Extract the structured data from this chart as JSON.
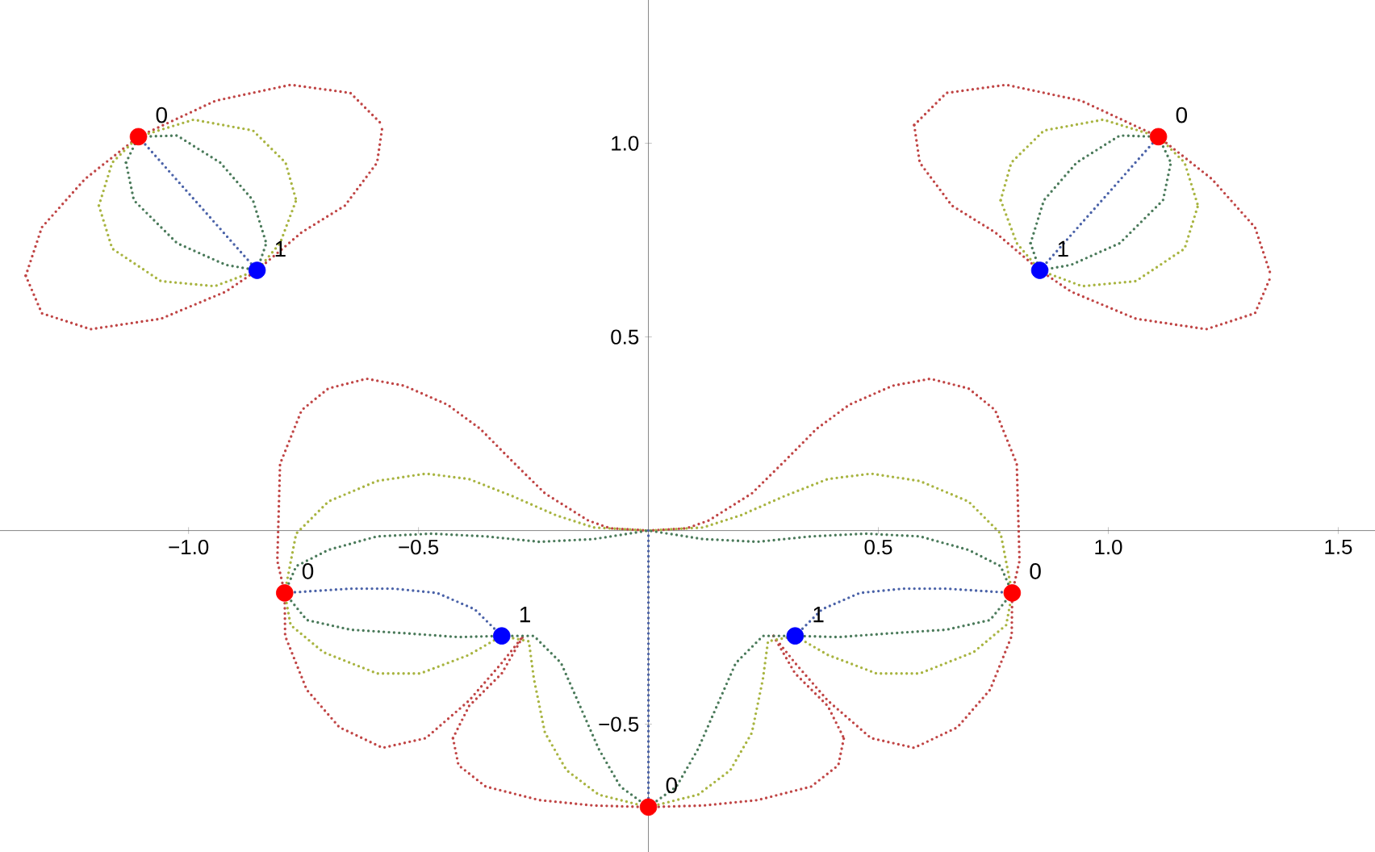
{
  "chart_data": {
    "type": "line",
    "line_style": "dotted",
    "xlim": [
      -1.41,
      1.58
    ],
    "ylim": [
      -0.83,
      1.37
    ],
    "xticks": [
      {
        "value": -1,
        "label": "−1.0"
      },
      {
        "value": -0.5,
        "label": "−0.5"
      },
      {
        "value": 0.5,
        "label": "0.5"
      },
      {
        "value": 1,
        "label": "1.0"
      },
      {
        "value": 1.5,
        "label": "1.5"
      }
    ],
    "yticks": [
      {
        "value": -0.5,
        "label": "−0.5"
      },
      {
        "value": 0.5,
        "label": "0.5"
      },
      {
        "value": 1,
        "label": "1.0"
      }
    ],
    "series": [
      {
        "color": "#c04545",
        "x": [
          -1.354,
          -1.319,
          -1.225,
          -1.109,
          -0.941,
          -0.778,
          -0.648,
          -0.578
        ],
        "values": [
          0.658,
          0.783,
          0.908,
          1.017,
          1.11,
          1.151,
          1.13,
          1.047
        ]
      },
      {
        "color": "#c04545",
        "x": [
          -1.354,
          -1.319,
          -1.213,
          -1.06,
          -0.919,
          -0.851,
          -0.754,
          -0.66,
          -0.59,
          -0.578
        ],
        "values": [
          0.658,
          0.561,
          0.52,
          0.547,
          0.617,
          0.672,
          0.77,
          0.839,
          0.95,
          1.047
        ]
      },
      {
        "color": "#c04545",
        "x": [
          0.578,
          0.648,
          0.778,
          0.941,
          1.109,
          1.225,
          1.319,
          1.354
        ],
        "values": [
          1.047,
          1.13,
          1.151,
          1.11,
          1.017,
          0.908,
          0.783,
          0.658
        ]
      },
      {
        "color": "#c04545",
        "x": [
          0.578,
          0.59,
          0.66,
          0.754,
          0.851,
          0.919,
          1.06,
          1.213,
          1.319,
          1.354
        ],
        "values": [
          1.047,
          0.95,
          0.839,
          0.77,
          0.672,
          0.617,
          0.547,
          0.52,
          0.561,
          0.658
        ]
      },
      {
        "color": "#c04545",
        "x": [
          -0.791,
          -0.807,
          -0.801,
          -0.754,
          -0.696,
          -0.613,
          -0.531,
          -0.437,
          -0.366,
          -0.296,
          -0.225,
          -0.131,
          -0.084,
          0,
          0.084,
          0.131,
          0.225,
          0.296,
          0.366,
          0.437,
          0.531,
          0.613,
          0.696,
          0.754,
          0.801,
          0.807,
          0.791
        ],
        "values": [
          -0.161,
          -0.078,
          0.172,
          0.311,
          0.367,
          0.392,
          0.374,
          0.325,
          0.263,
          0.179,
          0.096,
          0.026,
          0.006,
          0,
          0.006,
          0.026,
          0.096,
          0.179,
          0.263,
          0.325,
          0.374,
          0.392,
          0.367,
          0.311,
          0.172,
          -0.078,
          -0.161
        ]
      },
      {
        "color": "#c04545",
        "x": [
          -0.791,
          -0.79,
          -0.743,
          -0.672,
          -0.578,
          -0.484,
          -0.39,
          -0.319,
          -0.272
        ],
        "values": [
          -0.161,
          -0.272,
          -0.411,
          -0.508,
          -0.561,
          -0.536,
          -0.439,
          -0.342,
          -0.272
        ]
      },
      {
        "color": "#c04545",
        "x": [
          -0.425,
          -0.39,
          -0.319,
          -0.272
        ],
        "values": [
          -0.536,
          -0.453,
          -0.369,
          -0.272
        ]
      },
      {
        "color": "#c04545",
        "x": [
          -0.425,
          -0.413,
          -0.354,
          -0.237,
          -0.119,
          0
        ],
        "values": [
          -0.536,
          -0.606,
          -0.661,
          -0.696,
          -0.71,
          -0.714
        ]
      },
      {
        "color": "#c04545",
        "x": [
          0.272,
          0.319,
          0.39,
          0.484,
          0.578,
          0.672,
          0.743,
          0.79,
          0.791
        ],
        "values": [
          -0.272,
          -0.342,
          -0.439,
          -0.536,
          -0.561,
          -0.508,
          -0.411,
          -0.272,
          -0.161
        ]
      },
      {
        "color": "#c04545",
        "x": [
          0.272,
          0.319,
          0.39,
          0.425
        ],
        "values": [
          -0.272,
          -0.369,
          -0.453,
          -0.536
        ]
      },
      {
        "color": "#c04545",
        "x": [
          0,
          0.119,
          0.237,
          0.354,
          0.413,
          0.425
        ],
        "values": [
          -0.714,
          -0.71,
          -0.696,
          -0.661,
          -0.606,
          -0.536
        ]
      },
      {
        "color": "#a8b440",
        "x": [
          -1.195,
          -1.166,
          -1.109,
          -0.989,
          -0.86,
          -0.789,
          -0.766
        ],
        "values": [
          0.839,
          0.95,
          1.017,
          1.061,
          1.033,
          0.95,
          0.853
        ]
      },
      {
        "color": "#a8b440",
        "x": [
          -1.195,
          -1.166,
          -1.06,
          -0.943,
          -0.851,
          -0.801,
          -0.766
        ],
        "values": [
          0.839,
          0.728,
          0.644,
          0.631,
          0.672,
          0.742,
          0.853
        ]
      },
      {
        "color": "#a8b440",
        "x": [
          0.766,
          0.789,
          0.86,
          0.989,
          1.109,
          1.166,
          1.195
        ],
        "values": [
          0.853,
          0.95,
          1.033,
          1.061,
          1.017,
          0.95,
          0.839
        ]
      },
      {
        "color": "#a8b440",
        "x": [
          0.766,
          0.801,
          0.851,
          0.943,
          1.06,
          1.166,
          1.195
        ],
        "values": [
          0.853,
          0.742,
          0.672,
          0.631,
          0.644,
          0.728,
          0.839
        ]
      },
      {
        "color": "#a8b440",
        "x": [
          -0.791,
          -0.766,
          -0.696,
          -0.59,
          -0.484,
          -0.39,
          -0.296,
          -0.202,
          -0.119,
          0,
          0.119,
          0.202,
          0.296,
          0.39,
          0.484,
          0.59,
          0.696,
          0.766,
          0.791
        ],
        "values": [
          -0.161,
          -0.008,
          0.075,
          0.128,
          0.147,
          0.133,
          0.089,
          0.04,
          0.008,
          0,
          0.008,
          0.04,
          0.089,
          0.133,
          0.147,
          0.128,
          0.075,
          -0.008,
          -0.161
        ]
      },
      {
        "color": "#a8b440",
        "x": [
          -0.791,
          -0.778,
          -0.707,
          -0.59,
          -0.496,
          -0.39,
          -0.319,
          -0.26,
          -0.249,
          -0.225,
          -0.178,
          -0.108,
          0
        ],
        "values": [
          -0.161,
          -0.244,
          -0.314,
          -0.369,
          -0.369,
          -0.321,
          -0.272,
          -0.286,
          -0.383,
          -0.522,
          -0.619,
          -0.682,
          -0.714
        ]
      },
      {
        "color": "#a8b440",
        "x": [
          0,
          0.108,
          0.178,
          0.225,
          0.249,
          0.26,
          0.319,
          0.39,
          0.496,
          0.59,
          0.707,
          0.778,
          0.791
        ],
        "values": [
          -0.714,
          -0.682,
          -0.619,
          -0.522,
          -0.383,
          -0.286,
          -0.272,
          -0.321,
          -0.369,
          -0.369,
          -0.314,
          -0.244,
          -0.161
        ]
      },
      {
        "color": "#4a7a5a",
        "x": [
          -1.136,
          -1.109,
          -1.025,
          -0.931,
          -0.86,
          -0.831
        ],
        "values": [
          0.95,
          1.017,
          1.02,
          0.95,
          0.853,
          0.742
        ]
      },
      {
        "color": "#4a7a5a",
        "x": [
          -1.136,
          -1.119,
          -1.025,
          -0.919,
          -0.851,
          -0.831
        ],
        "values": [
          0.95,
          0.853,
          0.742,
          0.686,
          0.672,
          0.742
        ]
      },
      {
        "color": "#4a7a5a",
        "x": [
          0.831,
          0.86,
          0.931,
          1.025,
          1.109,
          1.136
        ],
        "values": [
          0.742,
          0.853,
          0.95,
          1.02,
          1.017,
          0.95
        ]
      },
      {
        "color": "#4a7a5a",
        "x": [
          0.831,
          0.851,
          0.919,
          1.025,
          1.119,
          1.136
        ],
        "values": [
          0.742,
          0.672,
          0.686,
          0.742,
          0.853,
          0.95
        ]
      },
      {
        "color": "#4a7a5a",
        "x": [
          -0.791,
          -0.766,
          -0.696,
          -0.59,
          -0.472,
          -0.354,
          -0.237,
          -0.119,
          0,
          0.119,
          0.237,
          0.354,
          0.472,
          0.59,
          0.696,
          0.766,
          0.791
        ],
        "values": [
          -0.161,
          -0.092,
          -0.05,
          -0.015,
          -0.008,
          -0.015,
          -0.029,
          -0.022,
          0,
          -0.022,
          -0.029,
          -0.015,
          -0.008,
          -0.015,
          -0.05,
          -0.092,
          -0.161
        ]
      },
      {
        "color": "#4a7a5a",
        "x": [
          -0.791,
          -0.743,
          -0.648,
          -0.531,
          -0.413,
          -0.319,
          -0.249,
          -0.19,
          -0.154,
          -0.108,
          -0.061,
          0
        ],
        "values": [
          -0.161,
          -0.231,
          -0.256,
          -0.265,
          -0.275,
          -0.272,
          -0.272,
          -0.342,
          -0.439,
          -0.564,
          -0.661,
          -0.714
        ]
      },
      {
        "color": "#4a7a5a",
        "x": [
          0,
          0.061,
          0.108,
          0.154,
          0.19,
          0.249,
          0.319,
          0.413,
          0.531,
          0.648,
          0.743,
          0.791
        ],
        "values": [
          -0.714,
          -0.661,
          -0.564,
          -0.439,
          -0.342,
          -0.272,
          -0.272,
          -0.275,
          -0.265,
          -0.256,
          -0.231,
          -0.161
        ]
      },
      {
        "color": "#4a62a8",
        "x": [
          -1.109,
          -0.851
        ],
        "values": [
          1.017,
          0.672
        ]
      },
      {
        "color": "#4a62a8",
        "x": [
          0.851,
          1.109
        ],
        "values": [
          0.672,
          1.017
        ]
      },
      {
        "color": "#4a62a8",
        "x": [
          -0.791,
          -0.648,
          -0.554,
          -0.46,
          -0.378,
          -0.319
        ],
        "values": [
          -0.161,
          -0.15,
          -0.15,
          -0.161,
          -0.203,
          -0.272
        ]
      },
      {
        "color": "#4a62a8",
        "x": [
          0.319,
          0.378,
          0.46,
          0.554,
          0.648,
          0.791
        ],
        "values": [
          -0.272,
          -0.203,
          -0.161,
          -0.15,
          -0.15,
          -0.161
        ]
      },
      {
        "color": "#4a62a8",
        "x": [
          0,
          0
        ],
        "values": [
          0,
          -0.714
        ]
      },
      {
        "type": "scatter",
        "color": "#ff0000",
        "x": [
          -1.109,
          1.109,
          -0.791,
          0.791,
          0
        ],
        "values": [
          1.017,
          1.017,
          -0.161,
          -0.161,
          -0.714
        ]
      },
      {
        "type": "scatter",
        "color": "#0000ff",
        "x": [
          -0.851,
          0.851,
          -0.319,
          0.319
        ],
        "values": [
          0.672,
          0.672,
          -0.272,
          -0.272
        ]
      }
    ],
    "annotations": [
      {
        "text": "0",
        "x": -1.109,
        "y": 1.017
      },
      {
        "text": "0",
        "x": 1.109,
        "y": 1.017
      },
      {
        "text": "0",
        "x": -0.791,
        "y": -0.161
      },
      {
        "text": "0",
        "x": 0.791,
        "y": -0.161
      },
      {
        "text": "0",
        "x": 0,
        "y": -0.714
      },
      {
        "text": "1",
        "x": -0.851,
        "y": 0.672
      },
      {
        "text": "1",
        "x": 0.851,
        "y": 0.672
      },
      {
        "text": "1",
        "x": -0.319,
        "y": -0.272
      },
      {
        "text": "1",
        "x": 0.319,
        "y": -0.272
      }
    ]
  }
}
